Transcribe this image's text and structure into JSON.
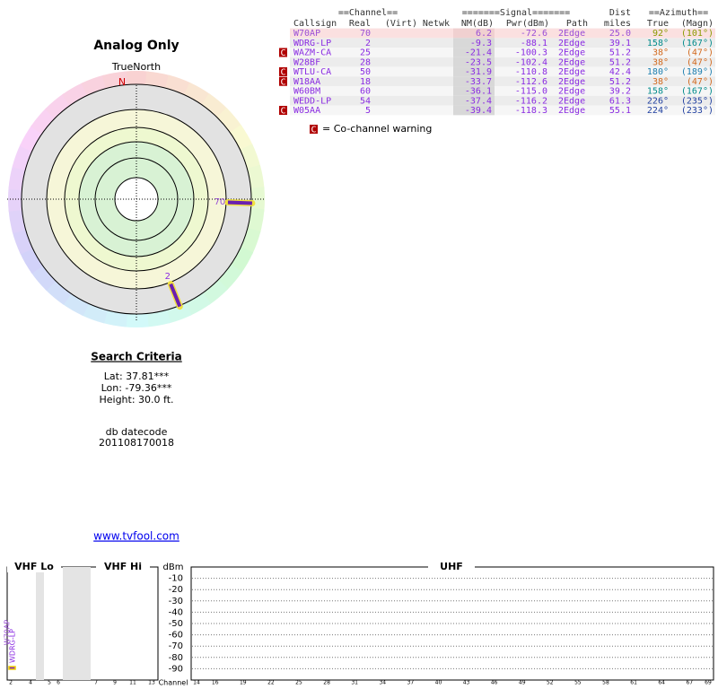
{
  "table": {
    "group_headers": [
      "==Channel==",
      "=======Signal=======",
      "==Azimuth=="
    ],
    "columns": [
      "Callsign",
      "Real",
      "(Virt)",
      "Netwk",
      "NM(dB)",
      "Pwr(dBm)",
      "Path",
      "Dist",
      "miles",
      "True",
      "(Magn)"
    ],
    "rows": [
      {
        "callsign": "W70AP",
        "real": "70",
        "nm": "6.2",
        "pwr": "-72.6",
        "path": "2Edge",
        "dist": "25.0",
        "true": "92°",
        "magn": "(101°)",
        "cochannel": false,
        "color": "#9a4fd6",
        "az_color": "#8a9a00"
      },
      {
        "callsign": "WDRG-LP",
        "real": "2",
        "nm": "-9.3",
        "pwr": "-88.1",
        "path": "2Edge",
        "dist": "39.1",
        "true": "158°",
        "magn": "(167°)",
        "cochannel": false,
        "color": "#8a2be2",
        "az_color": "#008b8b"
      },
      {
        "callsign": "WAZM-CA",
        "real": "25",
        "nm": "-21.4",
        "pwr": "-100.3",
        "path": "2Edge",
        "dist": "51.2",
        "true": "38°",
        "magn": "(47°)",
        "cochannel": true,
        "color": "#8a2be2",
        "az_color": "#d2691e"
      },
      {
        "callsign": "W28BF",
        "real": "28",
        "nm": "-23.5",
        "pwr": "-102.4",
        "path": "2Edge",
        "dist": "51.2",
        "true": "38°",
        "magn": "(47°)",
        "cochannel": false,
        "color": "#8a2be2",
        "az_color": "#d2691e"
      },
      {
        "callsign": "WTLU-CA",
        "real": "50",
        "nm": "-31.9",
        "pwr": "-110.8",
        "path": "2Edge",
        "dist": "42.4",
        "true": "180°",
        "magn": "(189°)",
        "cochannel": true,
        "color": "#8a2be2",
        "az_color": "#1e7fb0"
      },
      {
        "callsign": "W18AA",
        "real": "18",
        "nm": "-33.7",
        "pwr": "-112.6",
        "path": "2Edge",
        "dist": "51.2",
        "true": "38°",
        "magn": "(47°)",
        "cochannel": true,
        "color": "#8a2be2",
        "az_color": "#d2691e"
      },
      {
        "callsign": "W60BM",
        "real": "60",
        "nm": "-36.1",
        "pwr": "-115.0",
        "path": "2Edge",
        "dist": "39.2",
        "true": "158°",
        "magn": "(167°)",
        "cochannel": false,
        "color": "#8a2be2",
        "az_color": "#008b8b"
      },
      {
        "callsign": "WEDD-LP",
        "real": "54",
        "nm": "-37.4",
        "pwr": "-116.2",
        "path": "2Edge",
        "dist": "61.3",
        "true": "226°",
        "magn": "(235°)",
        "cochannel": false,
        "color": "#8a2be2",
        "az_color": "#1f3fa0"
      },
      {
        "callsign": "W05AA",
        "real": "5",
        "nm": "-39.4",
        "pwr": "-118.3",
        "path": "2Edge",
        "dist": "55.1",
        "true": "224°",
        "magn": "(233°)",
        "cochannel": true,
        "color": "#8a2be2",
        "az_color": "#1f3fa0"
      }
    ],
    "cochannel_icon": "C",
    "cochannel_legend": "= Co-channel warning"
  },
  "polar": {
    "title": "Analog Only",
    "north_label": "TrueNorth",
    "n": "N"
  },
  "search": {
    "title": "Search Criteria",
    "lat": "Lat: 37.81***",
    "lon": "Lon: -79.36***",
    "height": "Height: 30.0 ft.",
    "datecode_label": "db datecode",
    "datecode": "201108170018",
    "link": "www.tvfool.com"
  },
  "spectrum": {
    "vhf_lo": "VHF Lo",
    "vhf_hi": "VHF Hi",
    "uhf": "UHF",
    "ylabel": "dBm",
    "xlabel": "Channel",
    "ylim": [
      -100,
      0
    ],
    "yticks": [
      -10,
      -20,
      -30,
      -40,
      -50,
      -60,
      -70,
      -80,
      -90
    ],
    "vhf_channels": [
      2,
      4,
      5,
      6,
      7,
      9,
      11,
      13
    ],
    "uhf_channels": [
      14,
      16,
      19,
      22,
      25,
      28,
      31,
      34,
      37,
      40,
      43,
      46,
      49,
      52,
      55,
      58,
      61,
      64,
      67,
      69
    ]
  }
}
